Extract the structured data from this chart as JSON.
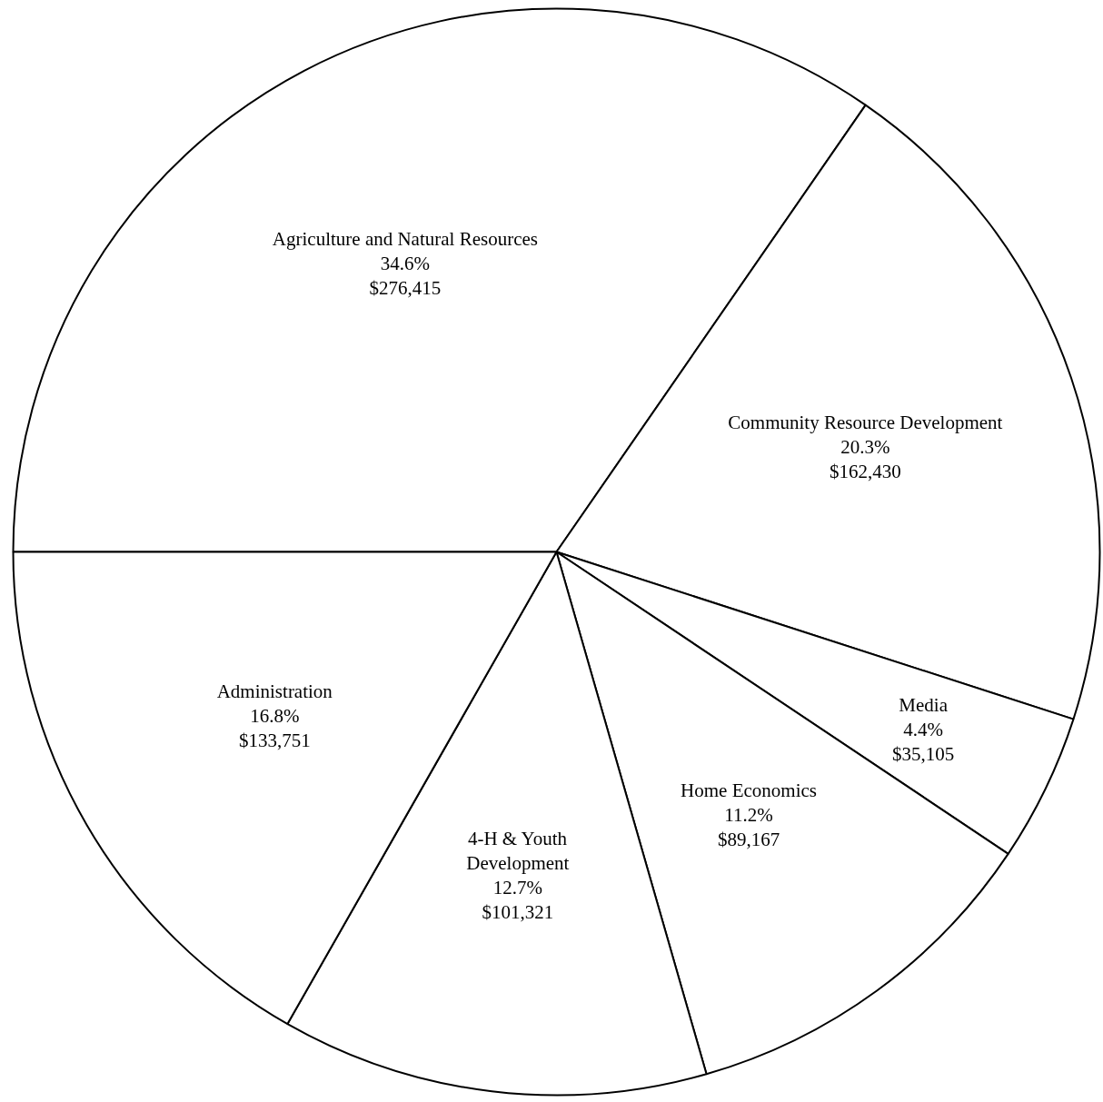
{
  "chart_data": {
    "type": "pie",
    "categories": [
      "Agriculture and Natural Resources",
      "Community Resource Development",
      "Media",
      "Home Economics",
      "4-H & Youth\nDevelopment",
      "Administration"
    ],
    "values": [
      276415,
      162430,
      35105,
      89167,
      101321,
      133751
    ],
    "value_labels": [
      "34.6%\n$276,415",
      "20.3%\n$162,430",
      "4.4%\n$35,105",
      "11.2%\n$89,167",
      "12.7%\n$101,321",
      "16.8%\n$133,751"
    ],
    "colors": [
      "#ffffff",
      "#ffffff",
      "#ffffff",
      "#ffffff",
      "#ffffff",
      "#ffffff"
    ]
  }
}
